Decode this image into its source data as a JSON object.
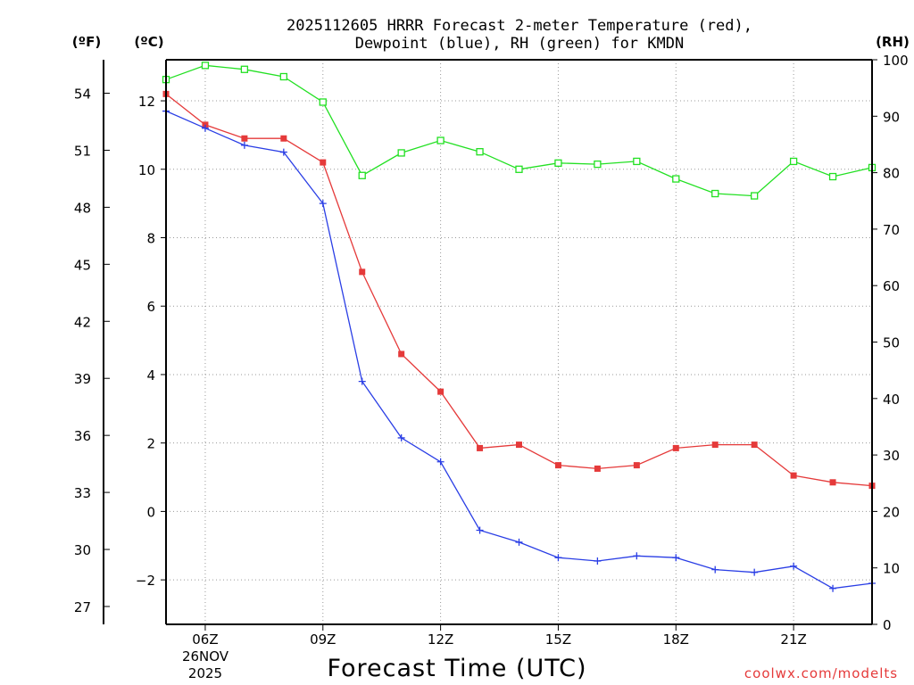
{
  "chart_data": {
    "type": "line",
    "title_line1": "2025112605 HRRR Forecast 2-meter Temperature (red),",
    "title_line2": "Dewpoint (blue), RH (green) for KMDN",
    "xlabel": "Forecast Time (UTC)",
    "credit": "coolwx.com/modelts",
    "units": {
      "fahrenheit": "(ºF)",
      "celsius": "(ºC)",
      "rh": "(RH)"
    },
    "x_hours": [
      5,
      6,
      7,
      8,
      9,
      10,
      11,
      12,
      13,
      14,
      15,
      16,
      17,
      18,
      19,
      20,
      21,
      22,
      23
    ],
    "x_ticks": [
      {
        "hour": 6,
        "label": "06Z"
      },
      {
        "hour": 9,
        "label": "09Z"
      },
      {
        "hour": 12,
        "label": "12Z"
      },
      {
        "hour": 15,
        "label": "15Z"
      },
      {
        "hour": 18,
        "label": "18Z"
      },
      {
        "hour": 21,
        "label": "21Z"
      }
    ],
    "date_label_line1": "26NOV",
    "date_label_line2": "2025",
    "xlim": [
      5,
      23
    ],
    "celsius_axis": {
      "ylim": [
        -3.3,
        13.2
      ],
      "ticks": [
        -2,
        0,
        2,
        4,
        6,
        8,
        10,
        12
      ]
    },
    "fahrenheit_axis": {
      "ticks": [
        27,
        30,
        33,
        36,
        39,
        42,
        45,
        48,
        51,
        54
      ]
    },
    "rh_axis": {
      "ylim": [
        0,
        100
      ],
      "ticks": [
        0,
        10,
        20,
        30,
        40,
        50,
        60,
        70,
        80,
        90,
        100
      ]
    },
    "series": [
      {
        "name": "Temperature",
        "unit": "C",
        "color": "#e53a3a",
        "marker": "filled-square",
        "values": [
          12.2,
          11.3,
          10.9,
          10.9,
          10.2,
          7.0,
          4.6,
          3.5,
          1.85,
          1.95,
          1.35,
          1.25,
          1.35,
          1.85,
          1.95,
          1.95,
          1.05,
          0.85,
          0.75
        ]
      },
      {
        "name": "Dewpoint",
        "unit": "C",
        "color": "#2a3ee5",
        "marker": "plus",
        "values": [
          11.7,
          11.2,
          10.7,
          10.5,
          9.0,
          3.8,
          2.15,
          1.45,
          -0.55,
          -0.9,
          -1.35,
          -1.45,
          -1.3,
          -1.35,
          -1.7,
          -1.78,
          -1.6,
          -2.25,
          -2.1
        ]
      },
      {
        "name": "RH",
        "unit": "%",
        "color": "#22e022",
        "marker": "open-square",
        "values": [
          96.5,
          99.0,
          98.3,
          97.0,
          92.5,
          79.5,
          83.5,
          85.7,
          83.7,
          80.6,
          81.7,
          81.5,
          82.0,
          78.9,
          76.3,
          75.9,
          82.0,
          79.3,
          80.9
        ]
      }
    ]
  }
}
